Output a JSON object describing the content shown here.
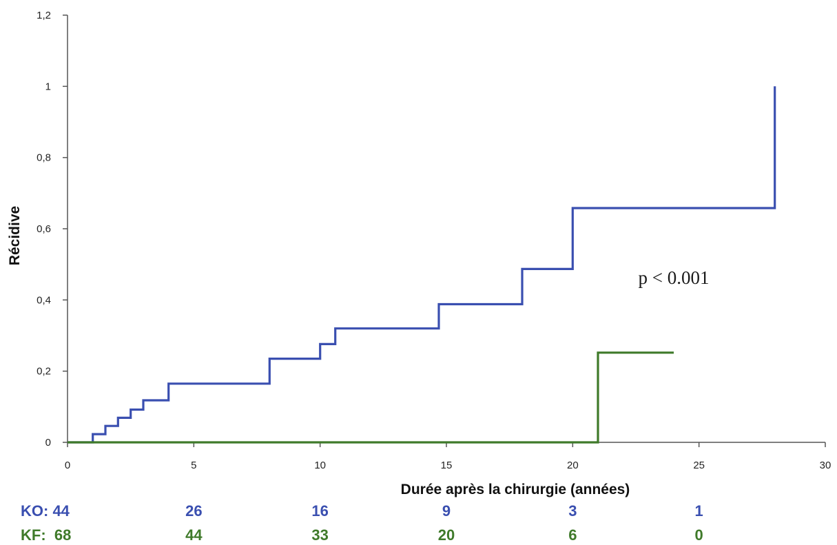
{
  "chart_data": {
    "type": "line",
    "step": true,
    "xlabel": "Durée après la chirurgie (années)",
    "ylabel": "Récidive",
    "xlim": [
      0,
      30
    ],
    "ylim": [
      0,
      1.2
    ],
    "x_ticks": [
      0,
      5,
      10,
      15,
      20,
      25,
      30
    ],
    "x_tick_labels": [
      "0",
      "5",
      "10",
      "15",
      "20",
      "25",
      "30"
    ],
    "y_ticks": [
      0,
      0.2,
      0.4,
      0.6,
      0.8,
      1,
      1.2
    ],
    "y_tick_labels": [
      "0",
      "0,2",
      "0,4",
      "0,6",
      "0,8",
      "1",
      "1,2"
    ],
    "grid": false,
    "annotation": "p < 0.001",
    "annotation_pos": {
      "x": 24,
      "y": 0.445
    },
    "series": [
      {
        "color": "#3a4fb0",
        "points": [
          [
            0,
            0
          ],
          [
            1,
            0
          ],
          [
            1,
            0.023
          ],
          [
            1.5,
            0.023
          ],
          [
            1.5,
            0.046
          ],
          [
            2,
            0.046
          ],
          [
            2,
            0.069
          ],
          [
            2.5,
            0.069
          ],
          [
            2.5,
            0.092
          ],
          [
            3,
            0.092
          ],
          [
            3,
            0.118
          ],
          [
            4,
            0.118
          ],
          [
            4,
            0.165
          ],
          [
            8,
            0.165
          ],
          [
            8,
            0.235
          ],
          [
            10,
            0.235
          ],
          [
            10,
            0.276
          ],
          [
            10.6,
            0.276
          ],
          [
            10.6,
            0.32
          ],
          [
            14.7,
            0.32
          ],
          [
            14.7,
            0.388
          ],
          [
            18,
            0.388
          ],
          [
            18,
            0.487
          ],
          [
            20,
            0.487
          ],
          [
            20,
            0.658
          ],
          [
            28,
            0.658
          ],
          [
            28,
            1.0
          ]
        ]
      },
      {
        "color": "#3f7a2a",
        "points": [
          [
            0,
            0
          ],
          [
            21,
            0
          ],
          [
            21,
            0.252
          ],
          [
            24,
            0.252
          ]
        ]
      }
    ]
  },
  "risk_table": {
    "rows": [
      {
        "label": "KO: 44",
        "values": [
          "26",
          "16",
          "9",
          "3",
          "1"
        ],
        "color": "#3a4fb0"
      },
      {
        "label": "KF:  68",
        "values": [
          "44",
          "33",
          "20",
          "6",
          "0"
        ],
        "color": "#3f7a2a"
      }
    ],
    "value_x": [
      5,
      10,
      15,
      20,
      25
    ]
  }
}
